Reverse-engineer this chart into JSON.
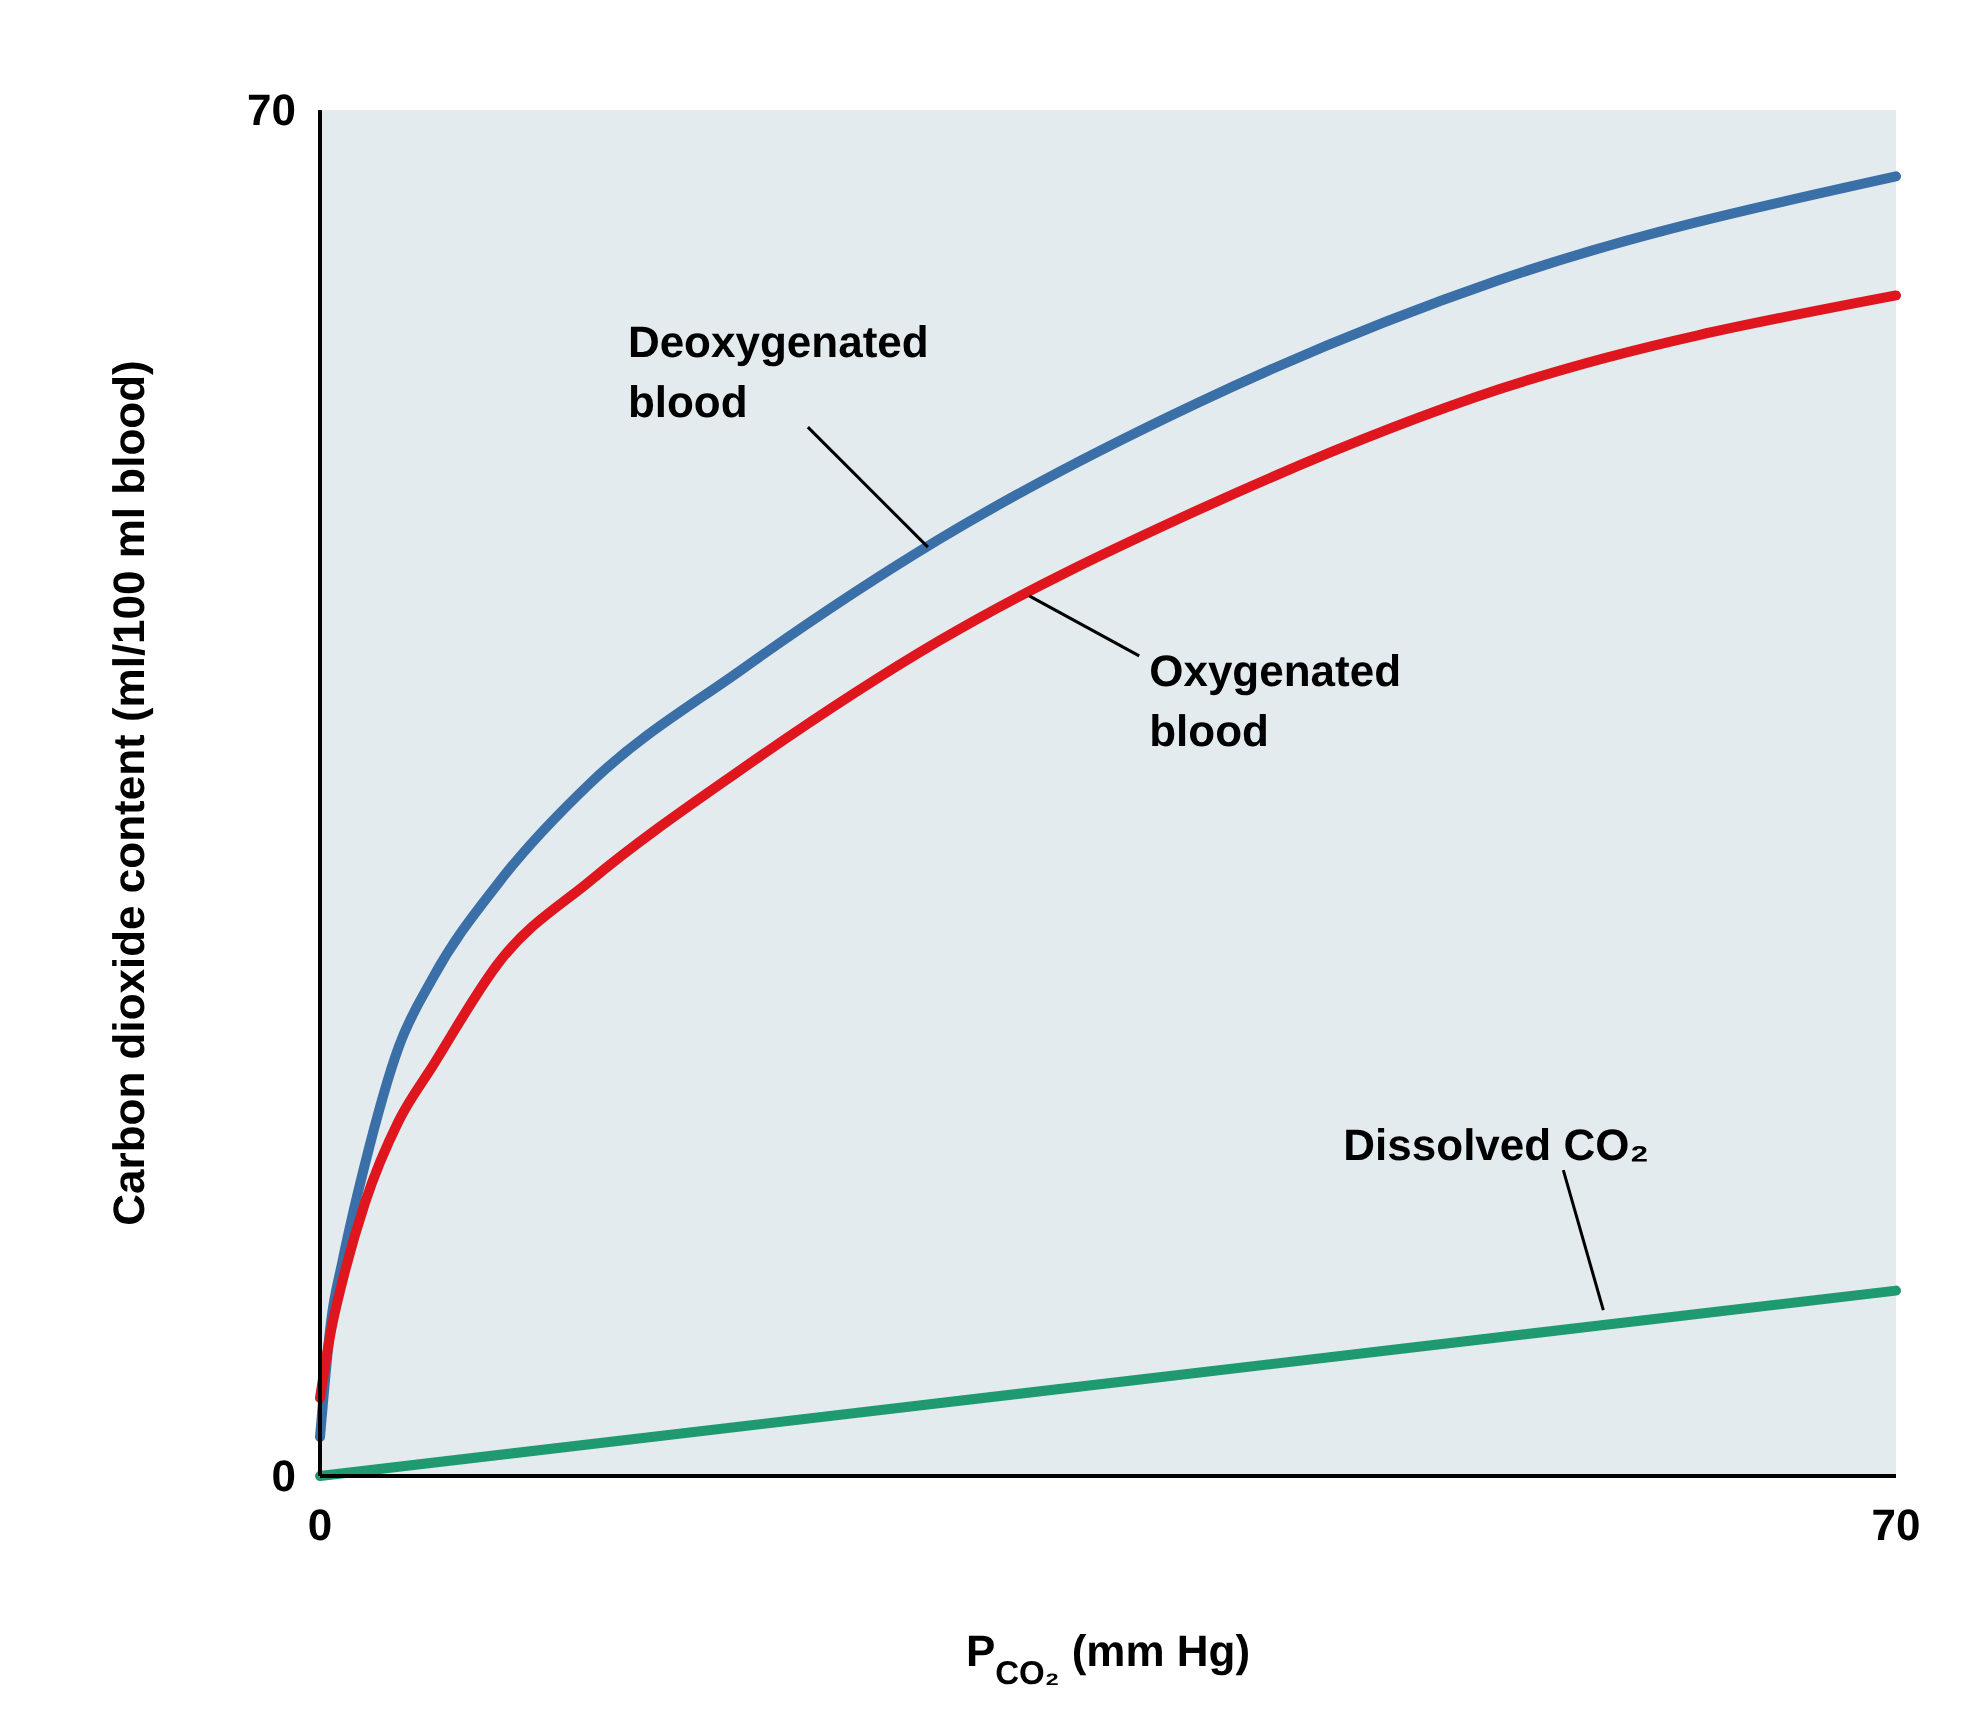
{
  "chart_data": {
    "type": "line",
    "xlabel": "P$_{CO₂}$ (mm Hg)",
    "ylabel": "Carbon dioxide content (ml/100 ml blood)",
    "xlim": [
      0,
      70
    ],
    "ylim": [
      0,
      70
    ],
    "xticks": [
      0,
      70
    ],
    "yticks": [
      0,
      70
    ],
    "grid": false,
    "marker": "none",
    "line_style": "solid",
    "series": [
      {
        "color": "#3b6fa8",
        "x": [
          0,
          0.5,
          1,
          2,
          3.5,
          5,
          8,
          12,
          18.7,
          27.5,
          39,
          52.4,
          70
        ],
        "values": [
          2,
          8,
          11,
          16,
          22,
          25.5,
          30.5,
          35.5,
          41.3,
          48,
          55,
          61.3,
          66.6
        ]
      },
      {
        "color": "#e0161e",
        "x": [
          0,
          0.5,
          1,
          2,
          3.5,
          5,
          8,
          12,
          18.7,
          27.5,
          39,
          52.4,
          70
        ],
        "values": [
          4,
          7.5,
          10,
          14,
          18.2,
          21,
          26.4,
          30.5,
          36.2,
          42.8,
          49.5,
          55.7,
          60.5
        ]
      },
      {
        "color": "#1f9a70",
        "x": [
          0,
          70
        ],
        "values": [
          0,
          9.5
        ]
      }
    ],
    "annotations": [
      {
        "text": "Deoxygenated blood",
        "x": 27,
        "y": 47.6
      },
      {
        "text": "Oxygenated blood",
        "x": 31.5,
        "y": 45.1
      },
      {
        "text": "Dissolved CO₂",
        "x": 57,
        "y": 8.5
      }
    ]
  }
}
